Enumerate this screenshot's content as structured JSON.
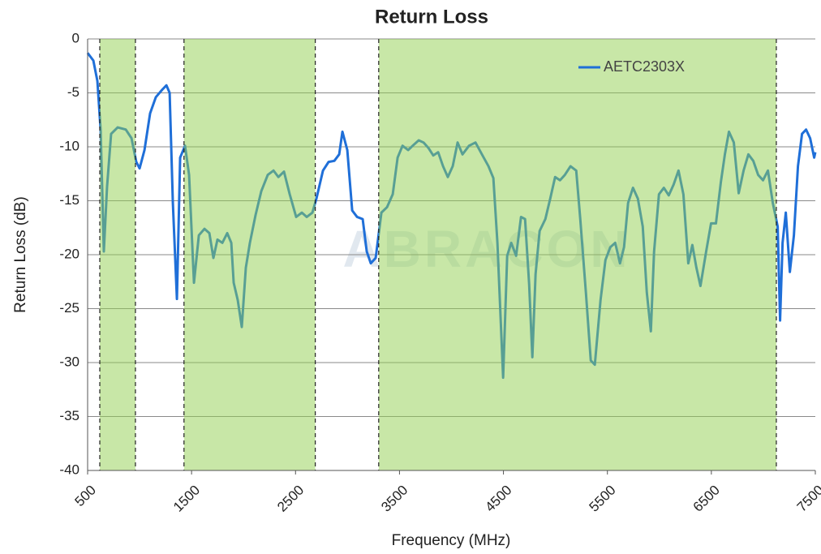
{
  "chart_data": {
    "type": "line",
    "title": "Return Loss",
    "xlabel": "Frequency (MHz)",
    "ylabel": "Return Loss (dB)",
    "watermark": "ABRACON",
    "xlim": [
      500,
      7500
    ],
    "xticks": [
      500,
      1500,
      2500,
      3500,
      4500,
      5500,
      6500,
      7500
    ],
    "ylim": [
      -40,
      0
    ],
    "yticks": [
      0,
      -5,
      -10,
      -15,
      -20,
      -25,
      -30,
      -35,
      -40
    ],
    "grid": true,
    "legend": "upper right",
    "bands": [
      [
        617,
        960
      ],
      [
        1427,
        2690
      ],
      [
        3300,
        7125
      ]
    ],
    "band_color": "#92d050",
    "x": [
      500,
      555,
      594,
      625,
      656,
      687,
      726,
      789,
      867,
      922,
      968,
      1000,
      1047,
      1101,
      1156,
      1218,
      1258,
      1289,
      1320,
      1359,
      1390,
      1437,
      1476,
      1523,
      1570,
      1624,
      1671,
      1710,
      1749,
      1796,
      1843,
      1882,
      1905,
      1944,
      1983,
      2022,
      2061,
      2116,
      2171,
      2233,
      2288,
      2335,
      2389,
      2444,
      2506,
      2561,
      2608,
      2662,
      2701,
      2764,
      2818,
      2873,
      2920,
      2951,
      2998,
      3045,
      3092,
      3146,
      3185,
      3224,
      3271,
      3326,
      3380,
      3435,
      3482,
      3529,
      3583,
      3638,
      3685,
      3731,
      3778,
      3825,
      3872,
      3919,
      3965,
      4012,
      4059,
      4106,
      4169,
      4231,
      4293,
      4356,
      4403,
      4442,
      4497,
      4536,
      4575,
      4622,
      4669,
      4708,
      4747,
      4778,
      4809,
      4848,
      4903,
      4950,
      4997,
      5044,
      5091,
      5145,
      5200,
      5239,
      5293,
      5340,
      5379,
      5434,
      5481,
      5528,
      5575,
      5621,
      5660,
      5699,
      5746,
      5793,
      5840,
      5879,
      5918,
      5949,
      5996,
      6043,
      6090,
      6137,
      6184,
      6231,
      6278,
      6317,
      6356,
      6395,
      6450,
      6497,
      6544,
      6591,
      6630,
      6669,
      6716,
      6763,
      6810,
      6856,
      6903,
      6950,
      6997,
      7044,
      7091,
      7138,
      7161,
      7185,
      7216,
      7255,
      7294,
      7333,
      7372,
      7411,
      7450,
      7489,
      7500
    ],
    "series": [
      {
        "name": "AETC2303X",
        "color": "#1f6fd8",
        "values": [
          -1.3,
          -2,
          -3.9,
          -8.4,
          -19.7,
          -13.7,
          -8.8,
          -8.2,
          -8.4,
          -9.2,
          -11.4,
          -12,
          -10.3,
          -6.9,
          -5.4,
          -4.7,
          -4.3,
          -5,
          -15.2,
          -24.1,
          -11,
          -9.9,
          -12.6,
          -22.6,
          -18.2,
          -17.6,
          -18,
          -20.3,
          -18.6,
          -18.9,
          -18,
          -18.9,
          -22.6,
          -24.2,
          -26.7,
          -21.2,
          -18.9,
          -16.3,
          -14.1,
          -12.6,
          -12.2,
          -12.8,
          -12.3,
          -14.4,
          -16.5,
          -16.1,
          -16.5,
          -16.1,
          -14.8,
          -12.2,
          -11.4,
          -11.3,
          -10.7,
          -8.6,
          -10.3,
          -15.9,
          -16.5,
          -16.7,
          -19.7,
          -20.8,
          -20.3,
          -16.1,
          -15.6,
          -14.4,
          -11,
          -9.9,
          -10.3,
          -9.8,
          -9.4,
          -9.6,
          -10.1,
          -10.8,
          -10.5,
          -11.8,
          -12.8,
          -11.8,
          -9.6,
          -10.7,
          -9.9,
          -9.6,
          -10.7,
          -11.8,
          -12.9,
          -18.9,
          -31.4,
          -20.1,
          -18.9,
          -20.1,
          -16.5,
          -16.7,
          -22.7,
          -29.5,
          -21.8,
          -17.8,
          -16.7,
          -14.8,
          -12.8,
          -13.1,
          -12.6,
          -11.8,
          -12.2,
          -16.7,
          -23.5,
          -29.8,
          -30.2,
          -24.2,
          -20.5,
          -19.3,
          -18.9,
          -20.8,
          -19.3,
          -15.2,
          -13.8,
          -14.8,
          -17.4,
          -23.5,
          -27.1,
          -19.7,
          -14.4,
          -13.8,
          -14.5,
          -13.5,
          -12.2,
          -14.4,
          -20.8,
          -19.1,
          -21.2,
          -22.9,
          -19.7,
          -17.1,
          -17.1,
          -13.3,
          -10.7,
          -8.6,
          -9.6,
          -14.3,
          -12.2,
          -10.7,
          -11.3,
          -12.6,
          -13.1,
          -12.2,
          -15.2,
          -17.4,
          -26.1,
          -18.9,
          -16.1,
          -21.6,
          -18.2,
          -11.8,
          -8.8,
          -8.4,
          -9.2,
          -11,
          -10.5
        ]
      }
    ]
  }
}
